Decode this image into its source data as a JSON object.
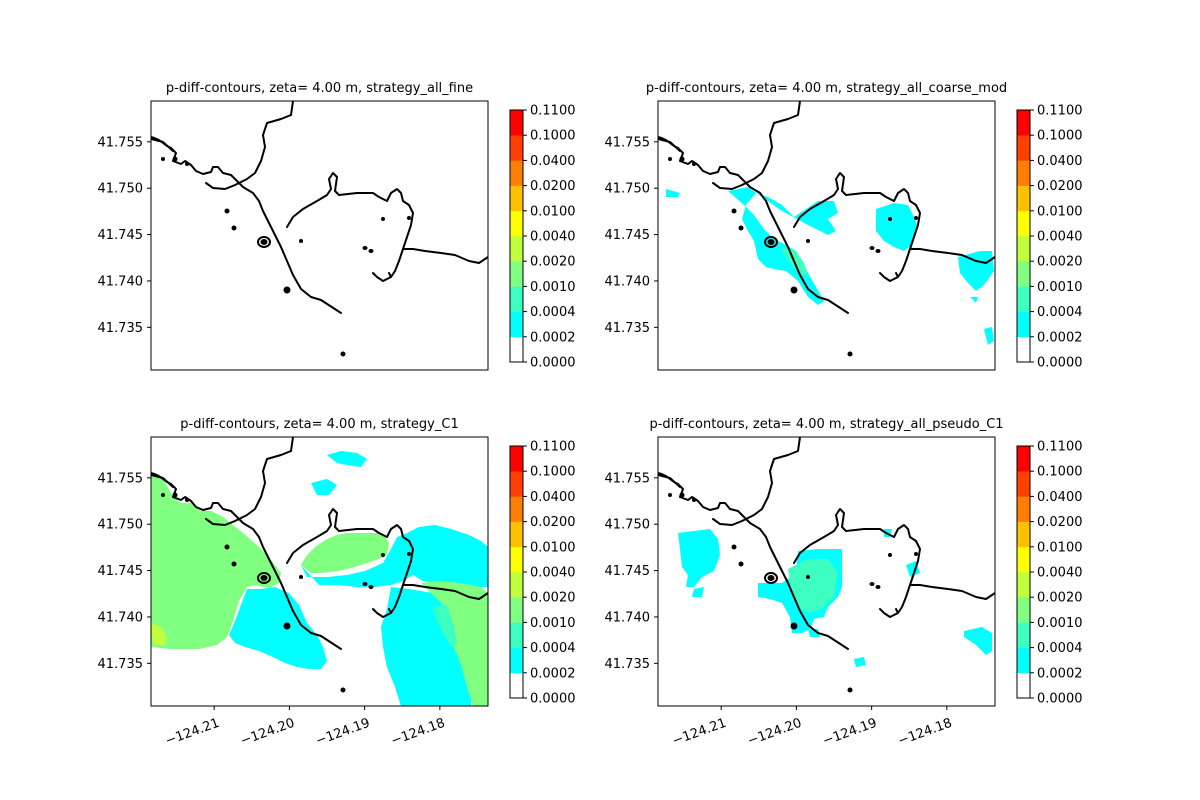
{
  "chart_data": [
    {
      "type": "contour",
      "title": "p-diff-contours, zeta= 4.00 m, strategy_all_fine",
      "x_ticks": [],
      "y_ticks": [
        "41.755",
        "41.750",
        "41.745",
        "41.740",
        "41.735"
      ],
      "xlim": [
        -124.2184,
        -124.1736
      ],
      "ylim": [
        41.7304,
        41.7594
      ],
      "colorbar": {
        "levels": [
          "0.0000",
          "0.0002",
          "0.0004",
          "0.0010",
          "0.0020",
          "0.0040",
          "0.0100",
          "0.0200",
          "0.0400",
          "0.1000",
          "0.1100"
        ],
        "colors": [
          "#ffffff",
          "#00ffff",
          "#3dffc0",
          "#80ff80",
          "#c0ff3d",
          "#ffff00",
          "#ffc000",
          "#ff8000",
          "#ff4000",
          "#ff0000"
        ]
      },
      "fill": "none"
    },
    {
      "type": "contour",
      "title": "p-diff-contours, zeta= 4.00 m, strategy_all_coarse_mod",
      "x_ticks": [],
      "y_ticks": [
        "41.755",
        "41.750",
        "41.745",
        "41.740",
        "41.735"
      ],
      "xlim": [
        -124.2184,
        -124.1736
      ],
      "ylim": [
        41.7304,
        41.7594
      ],
      "colorbar": {
        "levels": [
          "0.0000",
          "0.0002",
          "0.0004",
          "0.0010",
          "0.0020",
          "0.0040",
          "0.0100",
          "0.0200",
          "0.0400",
          "0.1000",
          "0.1100"
        ],
        "colors": [
          "#ffffff",
          "#00ffff",
          "#3dffc0",
          "#80ff80",
          "#c0ff3d",
          "#ffff00",
          "#ffc000",
          "#ff8000",
          "#ff4000",
          "#ff0000"
        ]
      },
      "fill": "coarse"
    },
    {
      "type": "contour",
      "title": "p-diff-contours, zeta= 4.00 m, strategy_C1",
      "x_ticks": [
        "−124.21",
        "−124.20",
        "−124.19",
        "−124.18"
      ],
      "y_ticks": [
        "41.755",
        "41.750",
        "41.745",
        "41.740",
        "41.735"
      ],
      "xlim": [
        -124.2184,
        -124.1736
      ],
      "ylim": [
        41.7304,
        41.7594
      ],
      "colorbar": {
        "levels": [
          "0.0000",
          "0.0002",
          "0.0004",
          "0.0010",
          "0.0020",
          "0.0040",
          "0.0100",
          "0.0200",
          "0.0400",
          "0.1000",
          "0.1100"
        ],
        "colors": [
          "#ffffff",
          "#00ffff",
          "#3dffc0",
          "#80ff80",
          "#c0ff3d",
          "#ffff00",
          "#ffc000",
          "#ff8000",
          "#ff4000",
          "#ff0000"
        ]
      },
      "fill": "c1"
    },
    {
      "type": "contour",
      "title": "p-diff-contours, zeta= 4.00 m, strategy_all_pseudo_C1",
      "x_ticks": [
        "−124.21",
        "−124.20",
        "−124.19",
        "−124.18"
      ],
      "y_ticks": [
        "41.755",
        "41.750",
        "41.745",
        "41.740",
        "41.735"
      ],
      "xlim": [
        -124.2184,
        -124.1736
      ],
      "ylim": [
        41.7304,
        41.7594
      ],
      "colorbar": {
        "levels": [
          "0.0000",
          "0.0002",
          "0.0004",
          "0.0010",
          "0.0020",
          "0.0040",
          "0.0100",
          "0.0200",
          "0.0400",
          "0.1000",
          "0.1100"
        ],
        "colors": [
          "#ffffff",
          "#00ffff",
          "#3dffc0",
          "#80ff80",
          "#c0ff3d",
          "#ffff00",
          "#ffc000",
          "#ff8000",
          "#ff4000",
          "#ff0000"
        ]
      },
      "fill": "pseudo"
    }
  ]
}
